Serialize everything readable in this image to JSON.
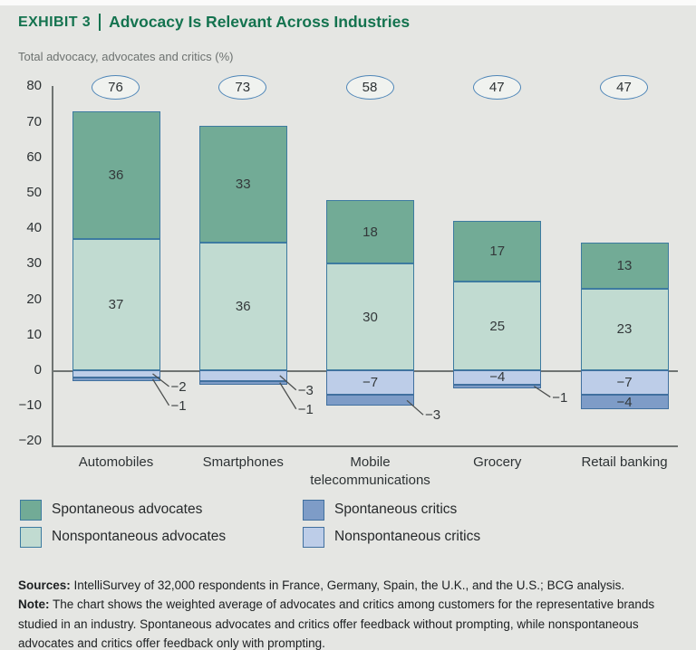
{
  "page": {
    "exhibit_label": "EXHIBIT 3",
    "title": "Advocacy Is Relevant Across Industries",
    "subtitle": "Total advocacy, advocates and critics (%)"
  },
  "chart_data": {
    "type": "bar",
    "stacked": true,
    "title": "Advocacy Is Relevant Across Industries",
    "ylabel": "Total advocacy, advocates and critics (%)",
    "xlabel": "",
    "ylim": [
      -20,
      80
    ],
    "yticks": [
      80,
      70,
      60,
      50,
      40,
      30,
      20,
      10,
      0,
      -10,
      -20
    ],
    "grid": false,
    "legend_position": "bottom-left",
    "categories": [
      "Automobiles",
      "Smartphones",
      "Mobile telecommunications",
      "Grocery",
      "Retail banking"
    ],
    "totals": [
      76,
      73,
      58,
      47,
      47
    ],
    "series": [
      {
        "name": "Nonspontaneous advocates",
        "color": "#c1dbd1",
        "border": "#3d7ba0",
        "values": [
          37,
          36,
          30,
          25,
          23
        ],
        "label_placement": [
          "inside",
          "inside",
          "inside",
          "inside",
          "inside"
        ]
      },
      {
        "name": "Spontaneous advocates",
        "color": "#72ab96",
        "border": "#3d7ba0",
        "values": [
          36,
          33,
          18,
          17,
          13
        ],
        "label_placement": [
          "inside",
          "inside",
          "inside",
          "inside",
          "inside"
        ]
      },
      {
        "name": "Nonspontaneous critics",
        "color": "#bdcde8",
        "border": "#41709f",
        "values": [
          -2,
          -3,
          -7,
          -4,
          -7
        ],
        "label_placement": [
          "outside",
          "outside",
          "inside",
          "inside",
          "inside"
        ]
      },
      {
        "name": "Spontaneous critics",
        "color": "#7e9cc7",
        "border": "#41709f",
        "values": [
          -1,
          -1,
          -3,
          -1,
          -4
        ],
        "label_placement": [
          "outside",
          "outside",
          "outside",
          "outside",
          "inside"
        ]
      }
    ]
  },
  "legend": {
    "items": [
      {
        "label": "Spontaneous advocates",
        "color": "#72ab96",
        "border": "#3d7ba0"
      },
      {
        "label": "Nonspontaneous advocates",
        "color": "#c1dbd1",
        "border": "#3d7ba0"
      },
      {
        "label": "Spontaneous critics",
        "color": "#7e9cc7",
        "border": "#41709f"
      },
      {
        "label": "Nonspontaneous critics",
        "color": "#bdcde8",
        "border": "#41709f"
      }
    ]
  },
  "footer": {
    "sources_label": "Sources:",
    "sources_text": " IntelliSurvey of 32,000 respondents in France, Germany, Spain, the U.K., and the U.S.; BCG analysis.",
    "note_label": "Note:",
    "note_text": " The chart shows the weighted average of advocates and critics among customers for the representative brands studied in an industry. Spontaneous advocates and critics offer feedback without prompting, while nonspontaneous advocates and critics offer feedback only with prompting."
  }
}
